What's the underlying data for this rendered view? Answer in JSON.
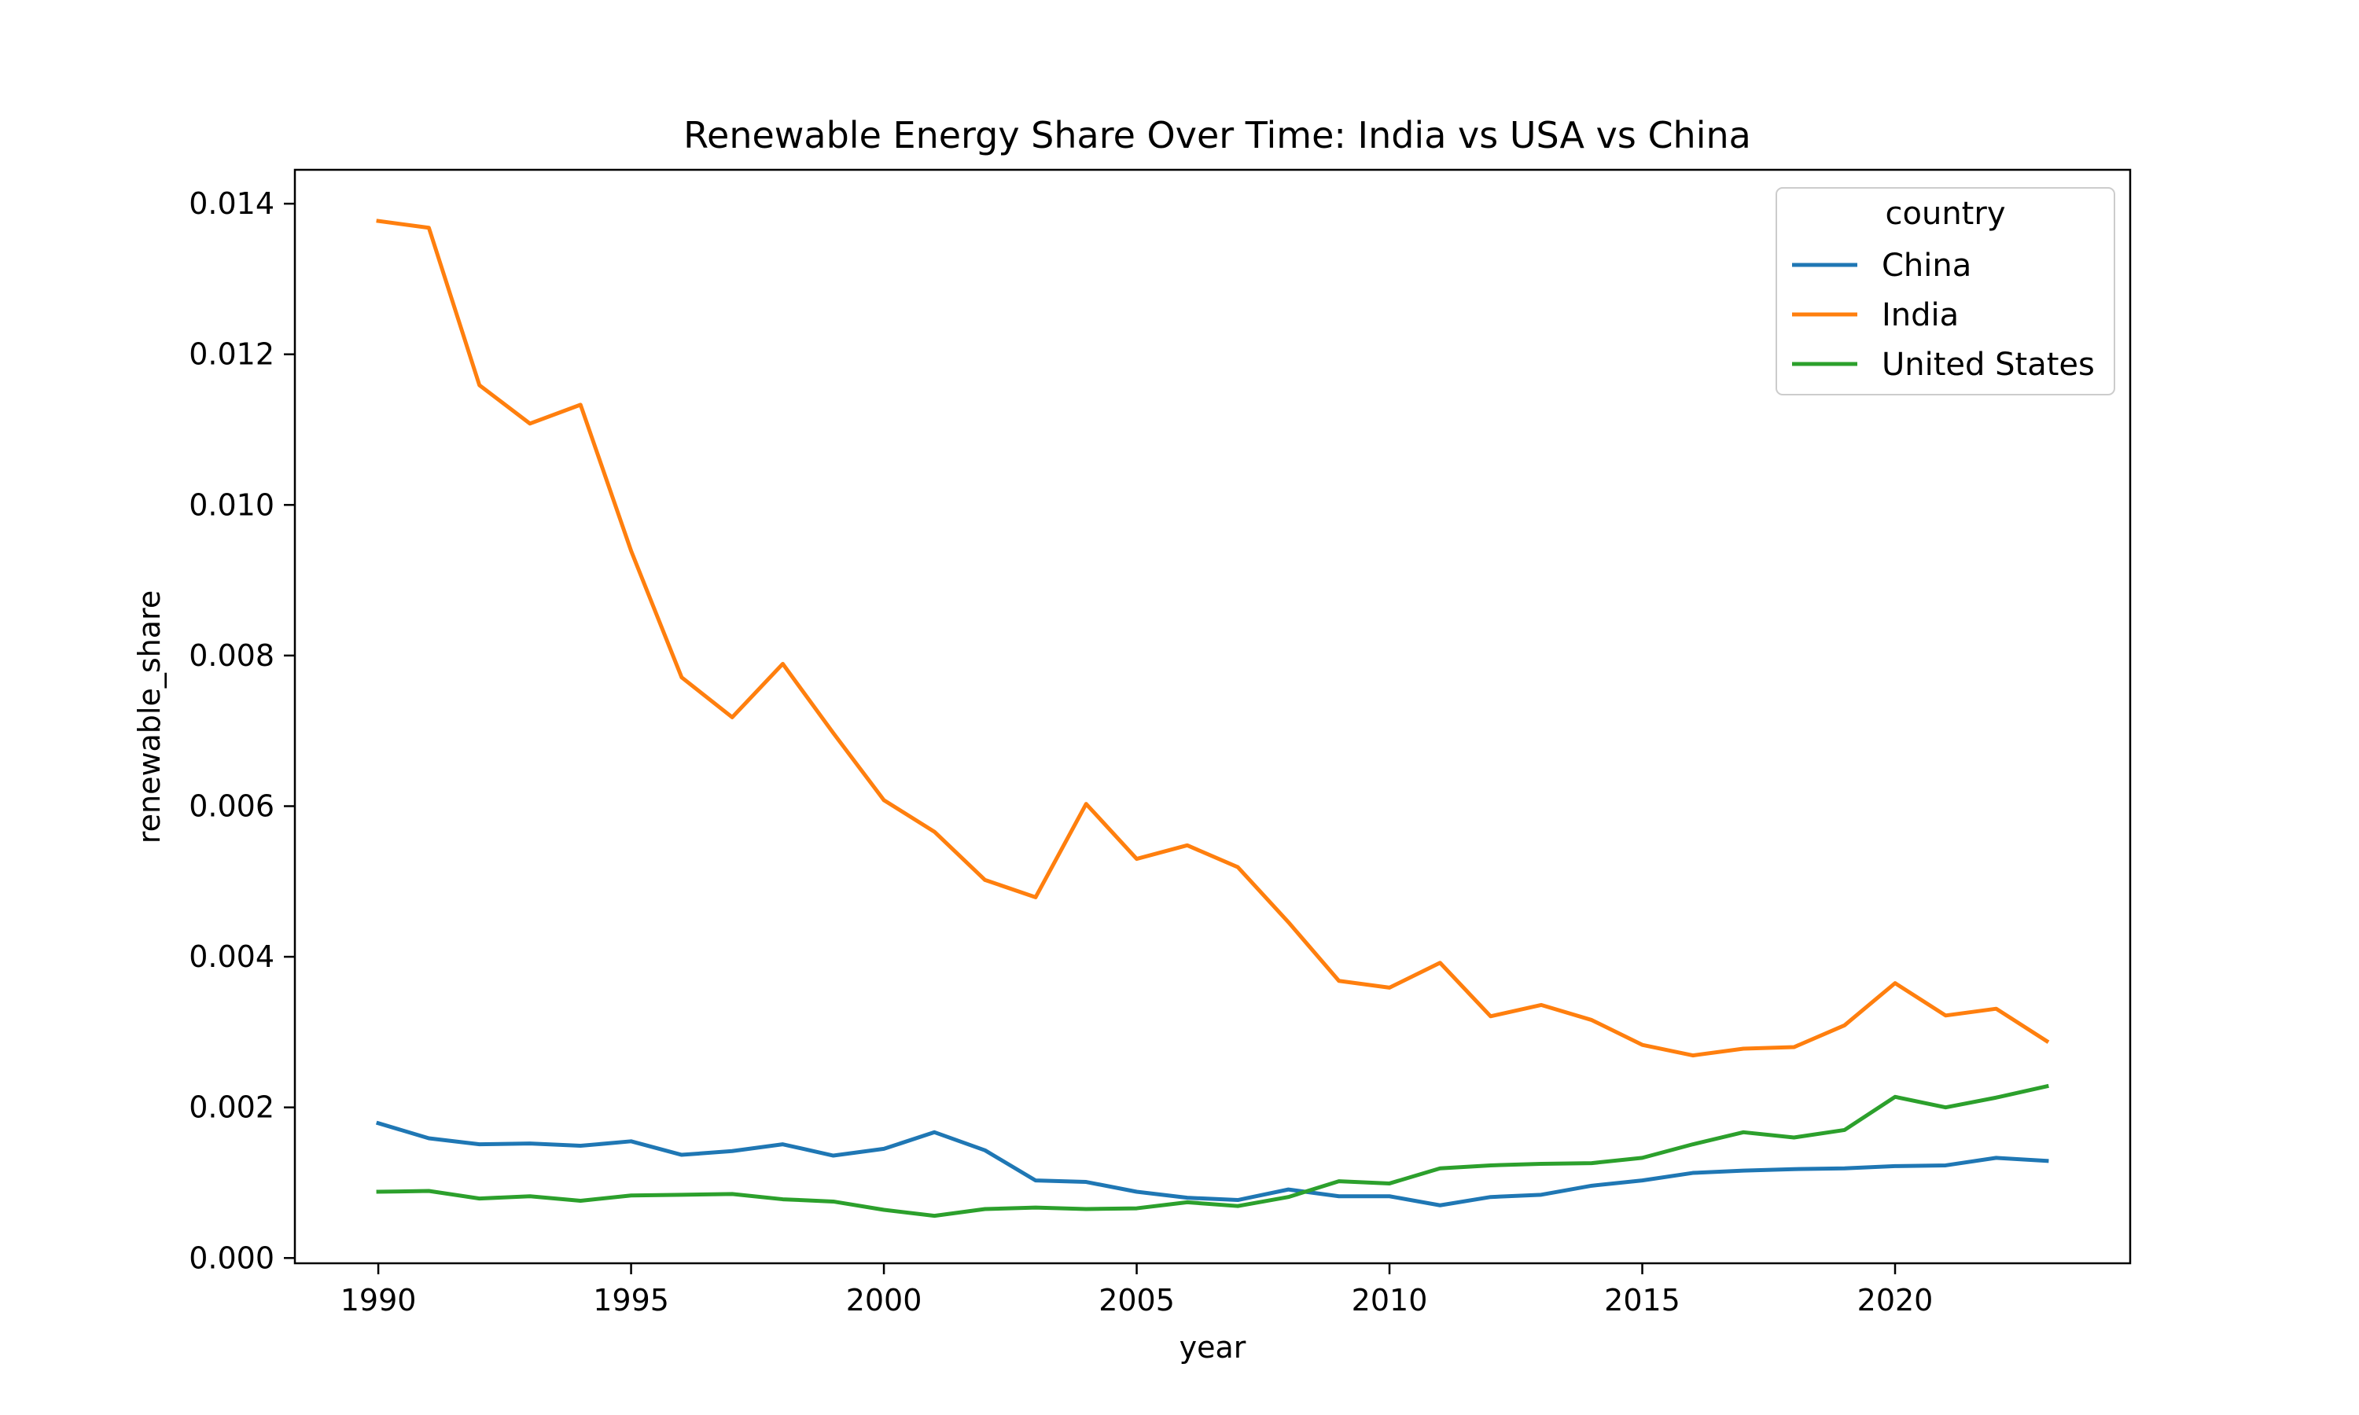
{
  "chart_data": {
    "type": "line",
    "title": "Renewable Energy Share Over Time: India vs USA vs China",
    "xlabel": "year",
    "ylabel": "renewable_share",
    "xlim": [
      1988.35,
      2024.65
    ],
    "ylim": [
      -7e-05,
      0.01445
    ],
    "xticks": [
      1990,
      1995,
      2000,
      2005,
      2010,
      2015,
      2020
    ],
    "xtick_labels": [
      "1990",
      "1995",
      "2000",
      "2005",
      "2010",
      "2015",
      "2020"
    ],
    "yticks": [
      0,
      0.002,
      0.004,
      0.006,
      0.008,
      0.01,
      0.012,
      0.014
    ],
    "ytick_labels": [
      "0.000",
      "0.002",
      "0.004",
      "0.006",
      "0.008",
      "0.010",
      "0.012",
      "0.014"
    ],
    "grid": false,
    "legend": {
      "title": "country",
      "position": "top-right"
    },
    "x": [
      1990,
      1991,
      1992,
      1993,
      1994,
      1995,
      1996,
      1997,
      1998,
      1999,
      2000,
      2001,
      2002,
      2003,
      2004,
      2005,
      2006,
      2007,
      2008,
      2009,
      2010,
      2011,
      2012,
      2013,
      2014,
      2015,
      2016,
      2017,
      2018,
      2019,
      2020,
      2021,
      2022,
      2023
    ],
    "series": [
      {
        "name": "China",
        "color": "#1f77b4",
        "values": [
          0.00179,
          0.00159,
          0.00151,
          0.00152,
          0.00149,
          0.00155,
          0.00137,
          0.00142,
          0.00151,
          0.00136,
          0.00145,
          0.00167,
          0.00143,
          0.00103,
          0.00101,
          0.00088,
          0.0008,
          0.00077,
          0.00091,
          0.00082,
          0.00082,
          0.0007,
          0.00081,
          0.00084,
          0.00096,
          0.00103,
          0.00113,
          0.00116,
          0.00118,
          0.00119,
          0.00122,
          0.00123,
          0.00133,
          0.00129
        ]
      },
      {
        "name": "India",
        "color": "#ff7f0e",
        "values": [
          0.01377,
          0.01368,
          0.01159,
          0.01108,
          0.01133,
          0.00939,
          0.00771,
          0.00718,
          0.00789,
          0.00697,
          0.00608,
          0.00566,
          0.00502,
          0.00479,
          0.00603,
          0.0053,
          0.00548,
          0.00519,
          0.00446,
          0.00368,
          0.00359,
          0.00392,
          0.00321,
          0.00336,
          0.00316,
          0.00283,
          0.00269,
          0.00278,
          0.0028,
          0.00309,
          0.00365,
          0.00322,
          0.00331,
          0.00288
        ]
      },
      {
        "name": "United States",
        "color": "#2ca02c",
        "values": [
          0.00088,
          0.00089,
          0.00079,
          0.00082,
          0.00076,
          0.00083,
          0.00084,
          0.00085,
          0.00078,
          0.00075,
          0.00064,
          0.00056,
          0.00065,
          0.00067,
          0.00065,
          0.00066,
          0.00074,
          0.00069,
          0.00081,
          0.00102,
          0.00099,
          0.00119,
          0.00123,
          0.00125,
          0.00126,
          0.00133,
          0.00151,
          0.00167,
          0.0016,
          0.0017,
          0.00214,
          0.002,
          0.00213,
          0.00228
        ]
      }
    ]
  }
}
